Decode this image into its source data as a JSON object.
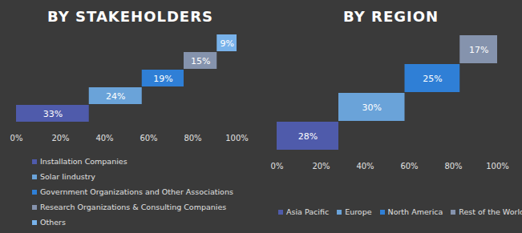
{
  "chart_data": [
    {
      "type": "bar",
      "orientation": "horizontal",
      "stacked": true,
      "title": "BY STAKEHOLDERS",
      "categories": [
        "Installation Companies",
        "Solar Iindustry",
        "Government Organizations and Other Associations",
        "Research Organizations & Consulting Companies",
        "Others"
      ],
      "values": [
        33,
        24,
        19,
        15,
        9
      ],
      "value_labels": [
        "33%",
        "24%",
        "19%",
        "15%",
        "9%"
      ],
      "colors": [
        "#4f5bab",
        "#6aa3d9",
        "#2f7fd6",
        "#8593ad",
        "#78b2ea"
      ],
      "xlim": [
        0,
        100
      ],
      "xticks": [
        {
          "value": 0,
          "label": "0%"
        },
        {
          "value": 20,
          "label": "20%"
        },
        {
          "value": 40,
          "label": "40%"
        },
        {
          "value": 60,
          "label": "60%"
        },
        {
          "value": 80,
          "label": "80%"
        },
        {
          "value": 100,
          "label": "100%"
        }
      ],
      "data_labels": true,
      "tick_labels": "x",
      "grid": false,
      "legend": "bottom"
    },
    {
      "type": "bar",
      "orientation": "horizontal",
      "stacked": true,
      "title": "BY REGION",
      "categories": [
        "Asia Pacific",
        "Europe",
        "North America",
        "Rest of the World"
      ],
      "values": [
        28,
        30,
        25,
        17
      ],
      "value_labels": [
        "28%",
        "30%",
        "25%",
        "17%"
      ],
      "colors": [
        "#4f5bab",
        "#6aa3d9",
        "#2f7fd6",
        "#8593ad"
      ],
      "xlim": [
        0,
        100
      ],
      "xticks": [
        {
          "value": 0,
          "label": "0%"
        },
        {
          "value": 20,
          "label": "20%"
        },
        {
          "value": 40,
          "label": "40%"
        },
        {
          "value": 60,
          "label": "60%"
        },
        {
          "value": 80,
          "label": "80%"
        },
        {
          "value": 100,
          "label": "100%"
        }
      ],
      "data_labels": true,
      "tick_labels": "x",
      "grid": false,
      "legend": "bottom"
    }
  ]
}
